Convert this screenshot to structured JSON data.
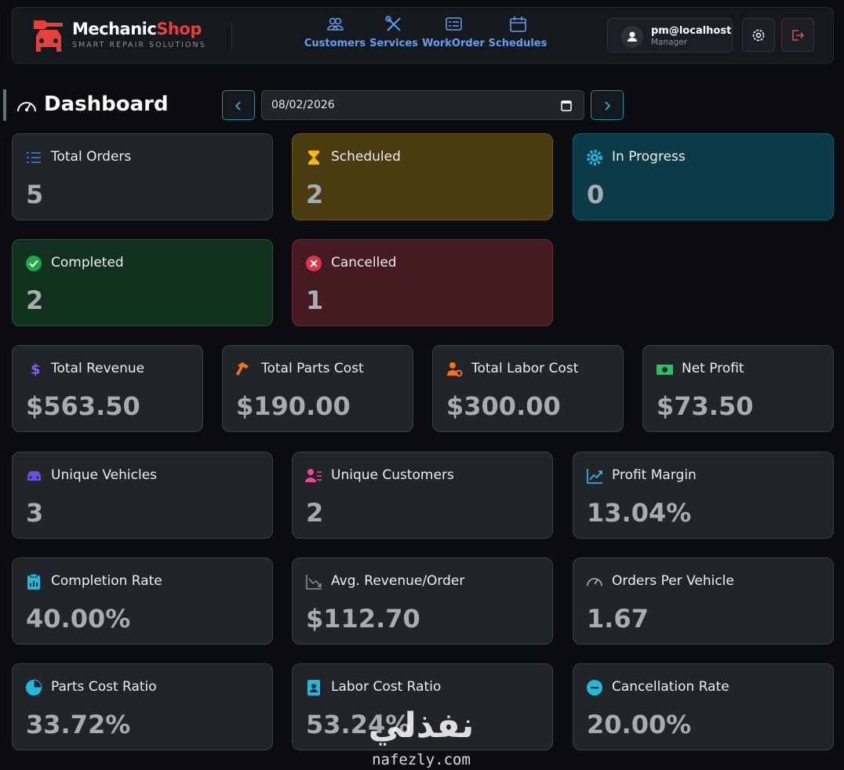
{
  "header": {
    "brand_main": "Mechanic",
    "brand_accent": "Shop",
    "tagline": "SMART REPAIR SOLUTIONS",
    "nav": [
      "Customers",
      "Services",
      "WorkOrder",
      "Schedules"
    ],
    "user": {
      "email": "pm@localhost",
      "role": "Manager"
    }
  },
  "page": {
    "title": "Dashboard",
    "date": "08/02/2026"
  },
  "cards": [
    {
      "label": "Total Orders",
      "value": "5"
    },
    {
      "label": "Scheduled",
      "value": "2"
    },
    {
      "label": "In Progress",
      "value": "0"
    },
    {
      "label": "Completed",
      "value": "2"
    },
    {
      "label": "Cancelled",
      "value": "1"
    },
    {
      "label": "Total Revenue",
      "value": "$563.50"
    },
    {
      "label": "Total Parts Cost",
      "value": "$190.00"
    },
    {
      "label": "Total Labor Cost",
      "value": "$300.00"
    },
    {
      "label": "Net Profit",
      "value": "$73.50"
    },
    {
      "label": "Unique Vehicles",
      "value": "3"
    },
    {
      "label": "Unique Customers",
      "value": "2"
    },
    {
      "label": "Profit Margin",
      "value": "13.04%"
    },
    {
      "label": "Completion Rate",
      "value": "40.00%"
    },
    {
      "label": "Avg. Revenue/Order",
      "value": "$112.70"
    },
    {
      "label": "Orders Per Vehicle",
      "value": "1.67"
    },
    {
      "label": "Parts Cost Ratio",
      "value": "33.72%"
    },
    {
      "label": "Labor Cost Ratio",
      "value": "53.24%"
    },
    {
      "label": "Cancellation Rate",
      "value": "20.00%"
    }
  ],
  "watermark": {
    "arabic": "نفذلي",
    "url": "nafezly.com"
  }
}
